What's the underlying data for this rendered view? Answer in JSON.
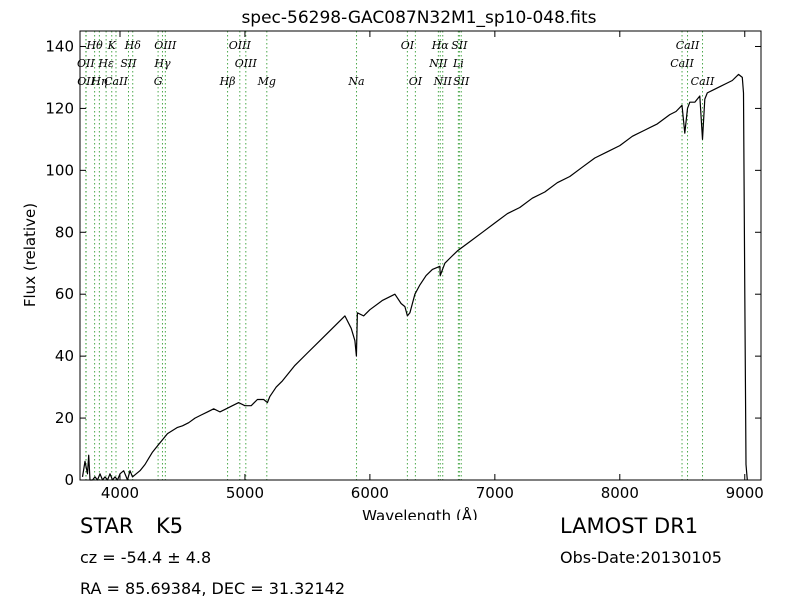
{
  "colors": {
    "spectrum": "#000000",
    "line_markers": "#4aa84a",
    "axes": "#000000"
  },
  "info": {
    "object_class": "STAR",
    "subclass": "K5",
    "redshift": "cz = -54.4 ± 4.8",
    "coords": "RA = 85.69384, DEC = 31.32142",
    "survey": "LAMOST DR1",
    "obs_date": "Obs-Date:20130105"
  },
  "chart_data": {
    "type": "line",
    "title": "spec-56298-GAC087N32M1_sp10-048.fits",
    "xlabel": "Wavelength (Å)",
    "ylabel": "Flux (relative)",
    "xlim": [
      3680,
      9130
    ],
    "ylim": [
      0,
      145
    ],
    "xticks": [
      4000,
      5000,
      6000,
      7000,
      8000,
      9000
    ],
    "yticks": [
      0,
      20,
      40,
      60,
      80,
      100,
      120,
      140
    ],
    "grid": false,
    "series": [
      {
        "x": [
          3700,
          3720,
          3740,
          3750,
          3760,
          3780,
          3800,
          3820,
          3840,
          3860,
          3880,
          3900,
          3920,
          3940,
          3960,
          3980,
          4000,
          4030,
          4060,
          4080,
          4100,
          4130,
          4160,
          4200,
          4230,
          4260,
          4300,
          4340,
          4380,
          4420,
          4460,
          4500,
          4550,
          4600,
          4650,
          4700,
          4750,
          4800,
          4850,
          4900,
          4950,
          5000,
          5050,
          5100,
          5150,
          5180,
          5200,
          5250,
          5300,
          5400,
          5500,
          5600,
          5700,
          5800,
          5850,
          5880,
          5892,
          5900,
          5950,
          6000,
          6100,
          6200,
          6250,
          6280,
          6300,
          6320,
          6360,
          6400,
          6450,
          6500,
          6560,
          6563,
          6600,
          6650,
          6700,
          6800,
          6900,
          7000,
          7100,
          7200,
          7300,
          7400,
          7500,
          7600,
          7700,
          7800,
          7900,
          8000,
          8100,
          8200,
          8300,
          8400,
          8450,
          8498,
          8520,
          8542,
          8560,
          8600,
          8640,
          8662,
          8680,
          8700,
          8750,
          8800,
          8850,
          8900,
          8950,
          8980,
          8990,
          9000,
          9010,
          9020
        ],
        "y": [
          1,
          6,
          2,
          8,
          0,
          0,
          1,
          0,
          2,
          0,
          1,
          0,
          2,
          0,
          1,
          0,
          2,
          3,
          0,
          3,
          1,
          2,
          3,
          5,
          7,
          9,
          11,
          13,
          15,
          16,
          17,
          17.5,
          18.5,
          20,
          21,
          22,
          23,
          22,
          23,
          24,
          25,
          24,
          24,
          26,
          26,
          25,
          27,
          30,
          32,
          37,
          41,
          45,
          49,
          53,
          49,
          45,
          40,
          54,
          53,
          55,
          58,
          60,
          57,
          56,
          53,
          54,
          60,
          63,
          66,
          68,
          69,
          66,
          70,
          72,
          74,
          77,
          80,
          83,
          86,
          88,
          91,
          93,
          96,
          98,
          101,
          104,
          106,
          108,
          111,
          113,
          115,
          118,
          119,
          121,
          112,
          120,
          122,
          122,
          124,
          110,
          123,
          125,
          126,
          127,
          128,
          129,
          131,
          130,
          125,
          60,
          5,
          0
        ]
      }
    ],
    "lines": [
      {
        "label": "Hθ",
        "wl": 3797,
        "row": 0
      },
      {
        "label": "K",
        "wl": 3934,
        "row": 0
      },
      {
        "label": "Hδ",
        "wl": 4102,
        "row": 0
      },
      {
        "label": "OIII",
        "wl": 4363,
        "row": 0
      },
      {
        "label": "OIII",
        "wl": 4959,
        "row": 0
      },
      {
        "label": "OI",
        "wl": 6300,
        "row": 0
      },
      {
        "label": "Hα",
        "wl": 6563,
        "row": 0
      },
      {
        "label": "SII",
        "wl": 6716,
        "row": 0
      },
      {
        "label": "CaII",
        "wl": 8542,
        "row": 0
      },
      {
        "label": "OII",
        "wl": 3727,
        "row": 1
      },
      {
        "label": "Hε",
        "wl": 3889,
        "row": 1
      },
      {
        "label": "SII",
        "wl": 4068,
        "row": 1
      },
      {
        "label": "Hγ",
        "wl": 4340,
        "row": 1
      },
      {
        "label": "OIII",
        "wl": 5007,
        "row": 1
      },
      {
        "label": "NII",
        "wl": 6548,
        "row": 1
      },
      {
        "label": "Li",
        "wl": 6708,
        "row": 1
      },
      {
        "label": "CaII",
        "wl": 8498,
        "row": 1
      },
      {
        "label": "OII",
        "wl": 3729,
        "row": 2
      },
      {
        "label": "Hη",
        "wl": 3835,
        "row": 2
      },
      {
        "label": "CaII",
        "wl": 3968,
        "row": 2
      },
      {
        "label": "G",
        "wl": 4305,
        "row": 2
      },
      {
        "label": "Hβ",
        "wl": 4861,
        "row": 2
      },
      {
        "label": "Mg",
        "wl": 5175,
        "row": 2
      },
      {
        "label": "Na",
        "wl": 5893,
        "row": 2
      },
      {
        "label": "OI",
        "wl": 6364,
        "row": 2
      },
      {
        "label": "NII",
        "wl": 6583,
        "row": 2
      },
      {
        "label": "SII",
        "wl": 6731,
        "row": 2
      },
      {
        "label": "CaII",
        "wl": 8662,
        "row": 2
      }
    ]
  }
}
